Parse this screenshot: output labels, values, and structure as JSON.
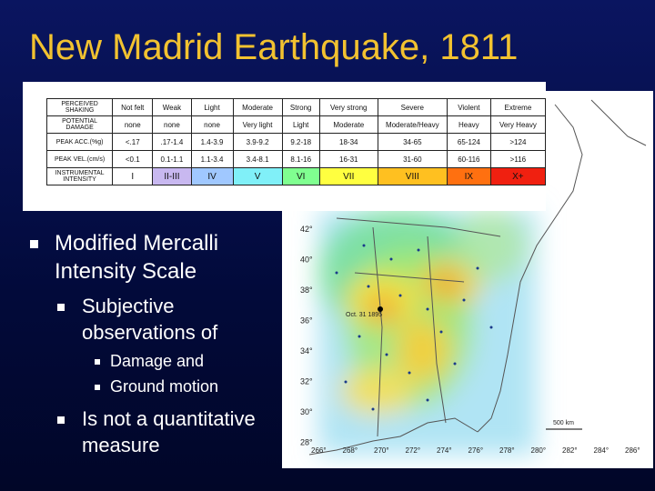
{
  "title": "New Madrid Earthquake, 1811",
  "table": {
    "rows": [
      [
        "PERCEIVED SHAKING",
        "Not felt",
        "Weak",
        "Light",
        "Moderate",
        "Strong",
        "Very strong",
        "Severe",
        "Violent",
        "Extreme"
      ],
      [
        "POTENTIAL DAMAGE",
        "none",
        "none",
        "none",
        "Very light",
        "Light",
        "Moderate",
        "Moderate/Heavy",
        "Heavy",
        "Very Heavy"
      ],
      [
        "PEAK ACC.(%g)",
        "<.17",
        ".17-1.4",
        "1.4-3.9",
        "3.9-9.2",
        "9.2-18",
        "18-34",
        "34-65",
        "65-124",
        ">124"
      ],
      [
        "PEAK VEL.(cm/s)",
        "<0.1",
        "0.1-1.1",
        "1.1-3.4",
        "3.4-8.1",
        "8.1-16",
        "16-31",
        "31-60",
        "60-116",
        ">116"
      ],
      [
        "INSTRUMENTAL INTENSITY",
        "I",
        "II-III",
        "IV",
        "V",
        "VI",
        "VII",
        "VIII",
        "IX",
        "X+"
      ]
    ]
  },
  "bullets": [
    {
      "text": "Modified Mercalli Intensity Scale",
      "level": 1
    },
    {
      "text": "Subjective observations of",
      "level": 2
    },
    {
      "text": "Damage and",
      "level": 3
    },
    {
      "text": "Ground motion",
      "level": 3
    },
    {
      "text": "Is not a quantitative measure",
      "level": 2
    }
  ],
  "map": {
    "lat_labels": [
      "42°",
      "40°",
      "38°",
      "36°",
      "34°",
      "32°",
      "30°",
      "28°"
    ],
    "lon_labels": [
      "266°",
      "268°",
      "270°",
      "272°",
      "274°",
      "276°",
      "278°",
      "280°",
      "282°",
      "284°",
      "286°"
    ],
    "event_label": "Oct. 31 1895",
    "scale_label": "500 km"
  }
}
